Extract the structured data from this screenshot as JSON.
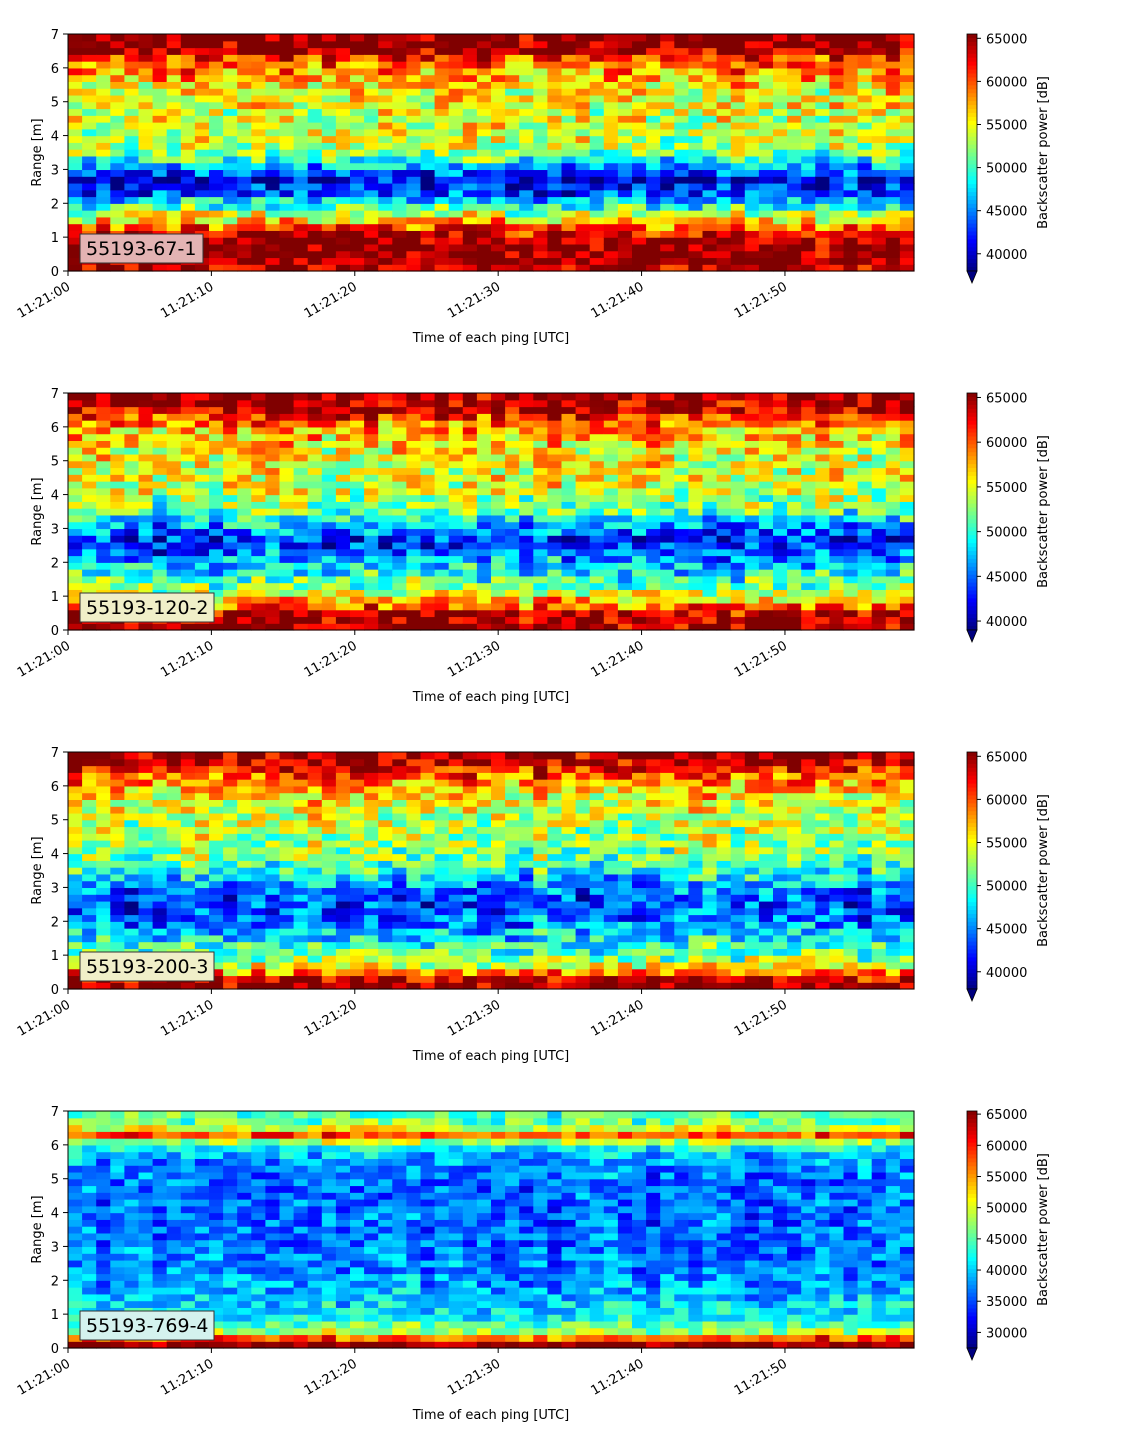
{
  "chart_data": [
    {
      "type": "heatmap",
      "label": "55193-67-1",
      "xlabel": "Time of each ping [UTC]",
      "ylabel": "Range [m]",
      "colorbar_label": "Backscatter power [dB]",
      "colormap": "jet",
      "xlim": [
        "11:21:00",
        "11:21:59"
      ],
      "ylim": [
        0,
        7
      ],
      "x_ticks": [
        "11:21:00",
        "11:21:10",
        "11:21:20",
        "11:21:30",
        "11:21:40",
        "11:21:50"
      ],
      "y_ticks": [
        0,
        1,
        2,
        3,
        4,
        5,
        6,
        7
      ],
      "clim": [
        38000,
        65500
      ],
      "colorbar_ticks": [
        40000,
        45000,
        50000,
        55000,
        60000,
        65000
      ],
      "colorbar_extend": "min",
      "label_box_color": "#e3b3b3",
      "profile": {
        "range_m": [
          0.1,
          0.7,
          1.1,
          1.5,
          1.9,
          2.3,
          2.7,
          3.0,
          3.4,
          4.0,
          4.6,
          5.2,
          5.8,
          6.3,
          6.6,
          7.0
        ],
        "power": [
          64000,
          66000,
          63000,
          56000,
          50000,
          43000,
          40000,
          44000,
          51000,
          54000,
          54000,
          55000,
          57000,
          61000,
          66000,
          66000
        ]
      }
    },
    {
      "type": "heatmap",
      "label": "55193-120-2",
      "xlabel": "Time of each ping [UTC]",
      "ylabel": "Range [m]",
      "colorbar_label": "Backscatter power [dB]",
      "colormap": "jet",
      "xlim": [
        "11:21:00",
        "11:21:59"
      ],
      "ylim": [
        0,
        7
      ],
      "x_ticks": [
        "11:21:00",
        "11:21:10",
        "11:21:20",
        "11:21:30",
        "11:21:40",
        "11:21:50"
      ],
      "y_ticks": [
        0,
        1,
        2,
        3,
        4,
        5,
        6,
        7
      ],
      "clim": [
        39000,
        65500
      ],
      "colorbar_ticks": [
        40000,
        45000,
        50000,
        55000,
        60000,
        65000
      ],
      "colorbar_extend": "min",
      "label_box_color": "#f0efc8",
      "profile": {
        "range_m": [
          0.1,
          0.5,
          0.8,
          1.3,
          1.8,
          2.3,
          2.7,
          3.1,
          3.6,
          4.2,
          4.8,
          5.4,
          6.0,
          6.5,
          7.0
        ],
        "power": [
          65500,
          64000,
          58000,
          52000,
          49000,
          45000,
          43000,
          47000,
          52000,
          54500,
          55000,
          56000,
          58000,
          64000,
          66000
        ]
      }
    },
    {
      "type": "heatmap",
      "label": "55193-200-3",
      "xlabel": "Time of each ping [UTC]",
      "ylabel": "Range [m]",
      "colorbar_label": "Backscatter power [dB]",
      "colormap": "jet",
      "xlim": [
        "11:21:00",
        "11:21:59"
      ],
      "ylim": [
        0,
        7
      ],
      "x_ticks": [
        "11:21:00",
        "11:21:10",
        "11:21:20",
        "11:21:30",
        "11:21:40",
        "11:21:50"
      ],
      "y_ticks": [
        0,
        1,
        2,
        3,
        4,
        5,
        6,
        7
      ],
      "clim": [
        38000,
        65500
      ],
      "colorbar_ticks": [
        40000,
        45000,
        50000,
        55000,
        60000,
        65000
      ],
      "colorbar_extend": "min",
      "label_box_color": "#f0efc8",
      "profile": {
        "range_m": [
          0.1,
          0.3,
          0.6,
          1.0,
          1.5,
          2.0,
          2.5,
          3.0,
          3.5,
          4.0,
          4.6,
          5.2,
          5.8,
          6.3,
          6.7,
          7.0
        ],
        "power": [
          65500,
          64000,
          56000,
          51000,
          48000,
          45000,
          43000,
          45000,
          49000,
          52000,
          53000,
          54000,
          56000,
          60000,
          64000,
          65000
        ]
      }
    },
    {
      "type": "heatmap",
      "label": "55193-769-4",
      "xlabel": "Time of each ping [UTC]",
      "ylabel": "Range [m]",
      "colorbar_label": "Backscatter power [dB]",
      "colormap": "jet",
      "xlim": [
        "11:21:00",
        "11:21:59"
      ],
      "ylim": [
        0,
        7
      ],
      "x_ticks": [
        "11:21:00",
        "11:21:10",
        "11:21:20",
        "11:21:30",
        "11:21:40",
        "11:21:50"
      ],
      "y_ticks": [
        0,
        1,
        2,
        3,
        4,
        5,
        6,
        7
      ],
      "clim": [
        27500,
        65500
      ],
      "colorbar_ticks": [
        30000,
        35000,
        40000,
        45000,
        50000,
        55000,
        60000,
        65000
      ],
      "colorbar_extend": "min",
      "label_box_color": "#d4f2ee",
      "profile": {
        "range_m": [
          0.1,
          0.25,
          0.5,
          0.9,
          1.4,
          2.0,
          2.6,
          3.2,
          3.8,
          4.4,
          5.0,
          5.6,
          6.0,
          6.3,
          6.6,
          7.0
        ],
        "power": [
          65000,
          60000,
          48000,
          42000,
          40000,
          38000,
          37000,
          36500,
          36000,
          36000,
          36500,
          38000,
          43000,
          58000,
          46000,
          44000
        ]
      }
    }
  ]
}
